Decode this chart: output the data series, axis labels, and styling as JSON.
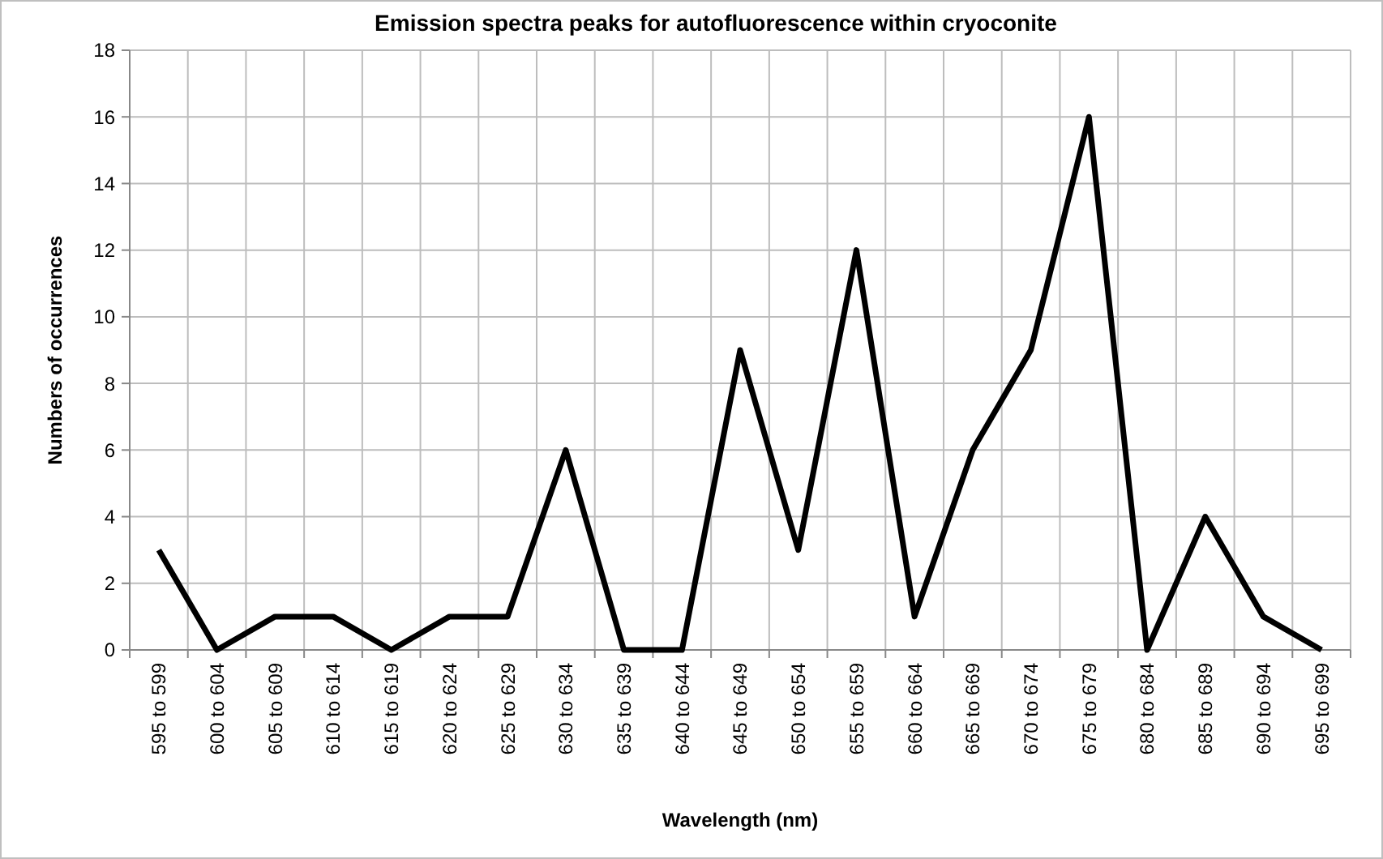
{
  "chart_data": {
    "type": "line",
    "title": "Emission spectra peaks for autofluorescence within cryoconite",
    "xlabel": "Wavelength (nm)",
    "ylabel": "Numbers of occurrences",
    "categories": [
      "595 to 599",
      "600 to 604",
      "605 to 609",
      "610 to 614",
      "615 to 619",
      "620 to 624",
      "625 to 629",
      "630 to 634",
      "635 to 639",
      "640 to 644",
      "645 to 649",
      "650 to 654",
      "655 to 659",
      "660 to 664",
      "665 to 669",
      "670 to 674",
      "675 to 679",
      "680 to 684",
      "685 to 689",
      "690 to 694",
      "695 to 699"
    ],
    "series": [
      {
        "color": "#000000",
        "values": [
          3,
          0,
          1,
          1,
          0,
          1,
          1,
          6,
          0,
          0,
          9,
          3,
          12,
          1,
          6,
          9,
          16,
          0,
          4,
          1,
          0
        ]
      }
    ],
    "ylim": [
      0,
      18
    ],
    "yticks": [
      0,
      2,
      4,
      6,
      8,
      10,
      12,
      14,
      16,
      18
    ],
    "grid": true,
    "marker": "none",
    "line_style": "solid"
  }
}
